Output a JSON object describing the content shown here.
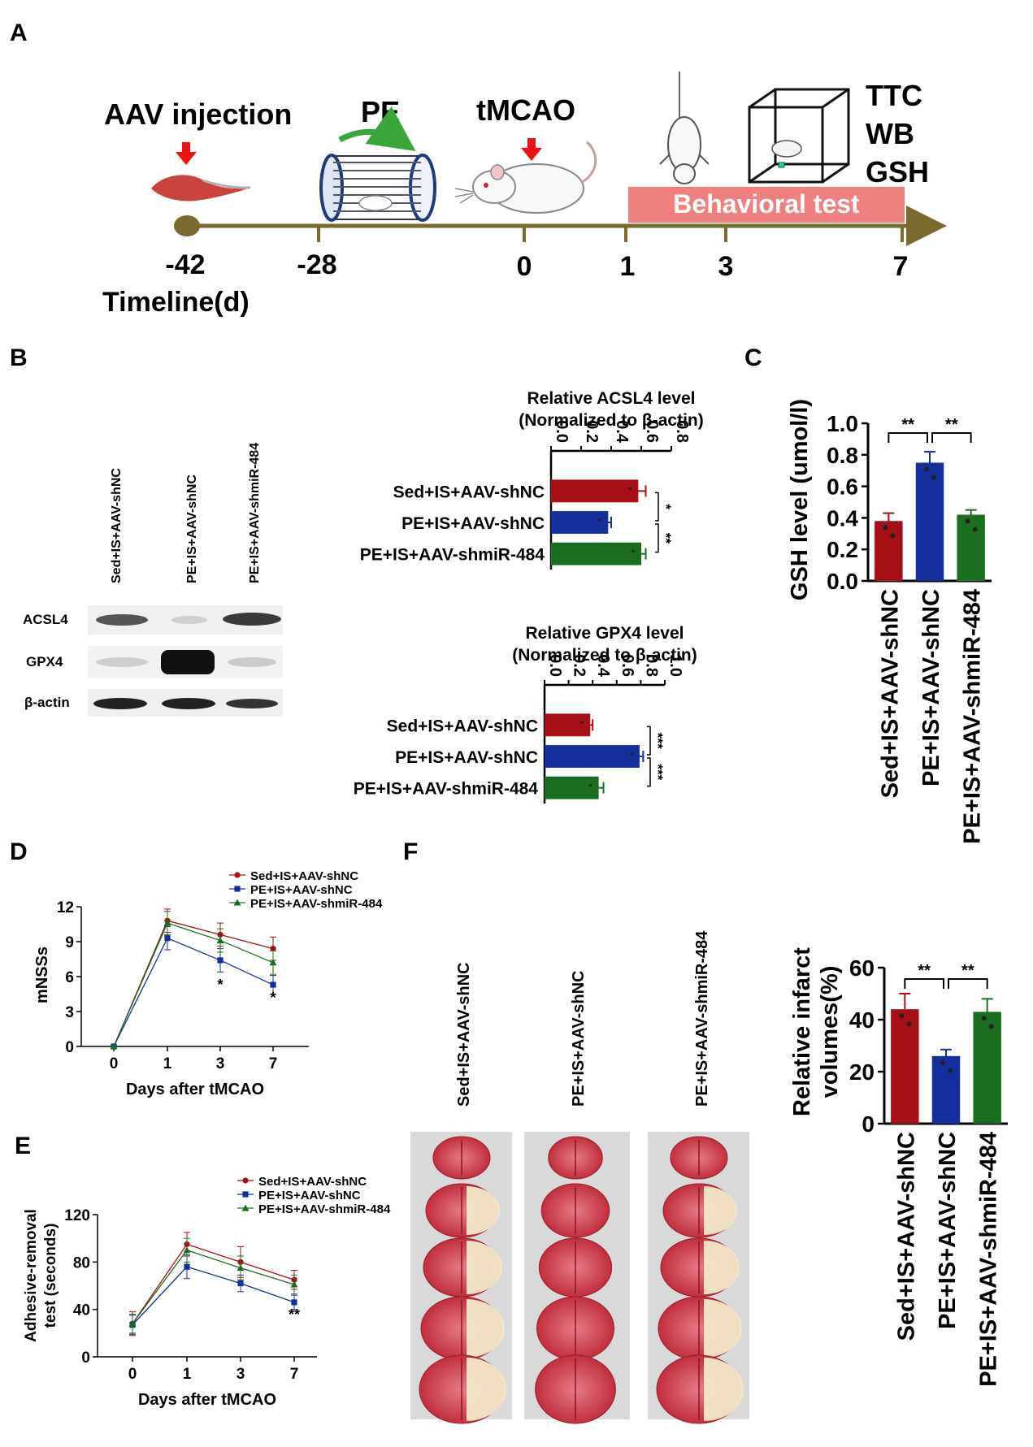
{
  "colors": {
    "red": "#a50f15",
    "blue": "#142f9c",
    "green": "#1b6e20",
    "timeline": "#7a6a2e",
    "behavior_box": "#f08080",
    "arrow_red": "#ee1111"
  },
  "panels": {
    "A": {
      "letter": "A",
      "labels": {
        "aav": "AAV injection",
        "pe": "PE",
        "tmcao": "tMCAO",
        "ttc": "TTC",
        "wb": "WB",
        "gsh": "GSH",
        "behavior": "Behavioral test",
        "timeline": "Timeline(d)"
      },
      "ticks": [
        "-42",
        "-28",
        "0",
        "1",
        "3",
        "7"
      ],
      "icons": [
        "muscle-icon",
        "running-wheel-icon",
        "rat-icon",
        "hanging-mouse-icon",
        "open-field-box-icon"
      ]
    },
    "B": {
      "letter": "B",
      "blot_columns": [
        "Sed+IS+AAV-shNC",
        "PE+IS+AAV-shNC",
        "PE+IS+AAV-shmiR-484"
      ],
      "blot_rows": [
        "ACSL4",
        "GPX4",
        "β-actin"
      ]
    },
    "C": {
      "letter": "C"
    },
    "D": {
      "letter": "D"
    },
    "E": {
      "letter": "E"
    },
    "F": {
      "letter": "F",
      "section_columns": [
        "Sed+IS+AAV-shNC",
        "PE+IS+AAV-shNC",
        "PE+IS+AAV-shmiR-484"
      ]
    }
  },
  "chart_data": [
    {
      "id": "acsl4",
      "type": "bar",
      "orientation": "horizontal",
      "title_line1": "Relative ACSL4 level",
      "title_line2": "(Normalized to β-actin)",
      "categories": [
        "Sed+IS+AAV-shNC",
        "PE+IS+AAV-shNC",
        "PE+IS+AAV-shmiR-484"
      ],
      "values": [
        0.58,
        0.38,
        0.6
      ],
      "errors": [
        0.05,
        0.02,
        0.03
      ],
      "xlim": [
        0,
        0.8
      ],
      "ticks": [
        "0.0",
        "0.2",
        "0.4",
        "0.6",
        "0.8"
      ],
      "significance": [
        "*",
        "**"
      ]
    },
    {
      "id": "gpx4",
      "type": "bar",
      "orientation": "horizontal",
      "title_line1": "Relative GPX4 level",
      "title_line2": "(Normalized to β-actin)",
      "categories": [
        "Sed+IS+AAV-shNC",
        "PE+IS+AAV-shNC",
        "PE+IS+AAV-shmiR-484"
      ],
      "values": [
        0.38,
        0.79,
        0.45
      ],
      "errors": [
        0.02,
        0.03,
        0.04
      ],
      "xlim": [
        0,
        1.0
      ],
      "ticks": [
        "0.0",
        "0.2",
        "0.4",
        "0.6",
        "0.8",
        "1.0"
      ],
      "significance": [
        "***",
        "***"
      ]
    },
    {
      "id": "gsh",
      "type": "bar",
      "ylabel": "GSH level (umol/l)",
      "categories": [
        "Sed+IS+AAV-shNC",
        "PE+IS+AAV-shNC",
        "PE+IS+AAV-shmiR-484"
      ],
      "values": [
        0.38,
        0.75,
        0.42
      ],
      "errors": [
        0.05,
        0.07,
        0.03
      ],
      "ylim": [
        0,
        1.0
      ],
      "ticks": [
        "0.0",
        "0.2",
        "0.4",
        "0.6",
        "0.8",
        "1.0"
      ],
      "significance": [
        "**",
        "**"
      ]
    },
    {
      "id": "mnss",
      "type": "line",
      "xlabel": "Days after tMCAO",
      "ylabel": "mNSSs",
      "x": [
        "0",
        "1",
        "3",
        "7"
      ],
      "ylim": [
        0,
        12
      ],
      "ticks": [
        "0",
        "3",
        "6",
        "9",
        "12"
      ],
      "series": [
        {
          "name": "Sed+IS+AAV-shNC",
          "values": [
            0,
            10.8,
            9.6,
            8.4
          ],
          "errors": [
            0,
            1.0,
            1.0,
            1.0
          ]
        },
        {
          "name": "PE+IS+AAV-shNC",
          "values": [
            0,
            9.3,
            7.4,
            5.3
          ],
          "errors": [
            0,
            1.0,
            1.0,
            0.8
          ]
        },
        {
          "name": "PE+IS+AAV-shmiR-484",
          "values": [
            0,
            10.6,
            9.1,
            7.2
          ],
          "errors": [
            0,
            1.0,
            1.0,
            1.0
          ]
        }
      ],
      "annotations": [
        "*",
        "*"
      ]
    },
    {
      "id": "adhesive",
      "type": "line",
      "xlabel": "Days after tMCAO",
      "ylabel_line1": "Adhesive-removal",
      "ylabel_line2": "test (seconds)",
      "x": [
        "0",
        "1",
        "3",
        "7"
      ],
      "ylim": [
        0,
        120
      ],
      "ticks": [
        "0",
        "40",
        "80",
        "120"
      ],
      "series": [
        {
          "name": "Sed+IS+AAV-shNC",
          "values": [
            28,
            95,
            80,
            65
          ],
          "errors": [
            10,
            10,
            13,
            8
          ]
        },
        {
          "name": "PE+IS+AAV-shNC",
          "values": [
            27,
            76,
            62,
            46
          ],
          "errors": [
            8,
            10,
            7,
            6
          ]
        },
        {
          "name": "PE+IS+AAV-shmiR-484",
          "values": [
            28,
            90,
            75,
            61
          ],
          "errors": [
            8,
            10,
            10,
            8
          ]
        }
      ],
      "annotations": [
        "**"
      ]
    },
    {
      "id": "infarct",
      "type": "bar",
      "ylabel_line1": "Relative infarct",
      "ylabel_line2": "volumes(%)",
      "categories": [
        "Sed+IS+AAV-shNC",
        "PE+IS+AAV-shNC",
        "PE+IS+AAV-shmiR-484"
      ],
      "values": [
        44,
        26,
        43
      ],
      "errors": [
        6,
        2.5,
        5
      ],
      "ylim": [
        0,
        60
      ],
      "ticks": [
        "0",
        "20",
        "40",
        "60"
      ],
      "significance": [
        "**",
        "**"
      ]
    }
  ]
}
